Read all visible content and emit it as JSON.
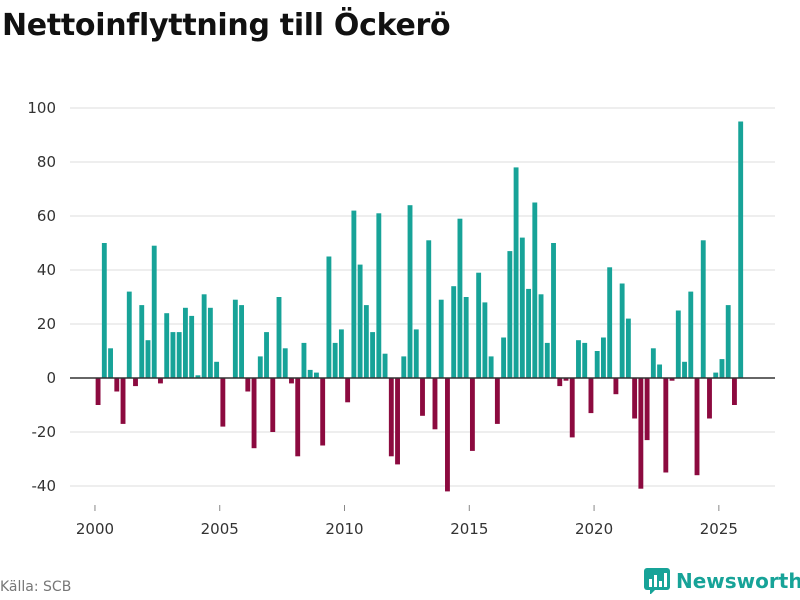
{
  "title": "Nettoinflyttning till Öckerö",
  "source": "Källa: SCB",
  "brand": {
    "name": "Newsworthy",
    "icon": "bar-chart-logo-icon"
  },
  "colors": {
    "positive": "#17a398",
    "negative": "#8c0a3f",
    "grid": "#dddddd",
    "zero_line": "#333333",
    "text": "#333333"
  },
  "chart_data": {
    "type": "bar",
    "title": "Nettoinflyttning till Öckerö",
    "xlabel": "",
    "ylabel": "",
    "xlim": [
      1999.0,
      2027.25
    ],
    "ylim": [
      -50,
      100
    ],
    "yticks": [
      -40,
      -20,
      0,
      20,
      40,
      60,
      80,
      100
    ],
    "xticks": [
      2000,
      2005,
      2010,
      2015,
      2020,
      2025
    ],
    "x_start": 2000.125,
    "x_step": 0.25,
    "values": [
      -10,
      50,
      11,
      -5,
      -17,
      32,
      -3,
      27,
      14,
      49,
      -2,
      24,
      17,
      17,
      26,
      23,
      1,
      31,
      26,
      6,
      -18,
      0,
      29,
      27,
      -5,
      -26,
      8,
      17,
      -20,
      30,
      11,
      -2,
      -29,
      13,
      3,
      2,
      -25,
      45,
      13,
      18,
      -9,
      62,
      42,
      27,
      17,
      61,
      9,
      -29,
      -32,
      8,
      64,
      18,
      -14,
      51,
      -19,
      29,
      -42,
      34,
      59,
      30,
      -27,
      39,
      28,
      8,
      -17,
      15,
      47,
      78,
      52,
      33,
      65,
      31,
      13,
      50,
      -3,
      -1,
      -22,
      14,
      13,
      -13,
      10,
      15,
      41,
      -6,
      35,
      22,
      -15,
      -41,
      -23,
      11,
      5,
      -35,
      -1,
      25,
      6,
      32,
      -36,
      51,
      -15,
      2,
      7,
      27,
      -10,
      95
    ]
  }
}
